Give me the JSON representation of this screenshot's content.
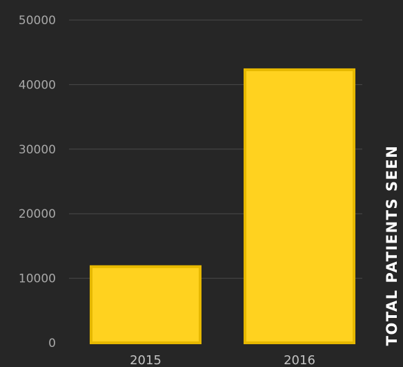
{
  "chart_data": {
    "type": "bar",
    "title": "",
    "xlabel": "",
    "ylabel": "TOTAL PATIENTS SEEN",
    "categories": [
      "2015",
      "2016"
    ],
    "values": [
      11800,
      42300
    ],
    "ylim": [
      0,
      50000
    ],
    "yticks": [
      0,
      10000,
      20000,
      30000,
      40000,
      50000
    ],
    "ytick_labels": [
      "0",
      "10000",
      "20000",
      "30000",
      "40000",
      "50000"
    ],
    "grid": true,
    "legend": "none",
    "colors": {
      "bar_fill": "#ffd21f",
      "bar_edge": "#e6b800",
      "background": "#262626",
      "grid": "#4a4a4a",
      "tick_text": "#a8a8a8",
      "label_text": "#ffffff"
    }
  }
}
